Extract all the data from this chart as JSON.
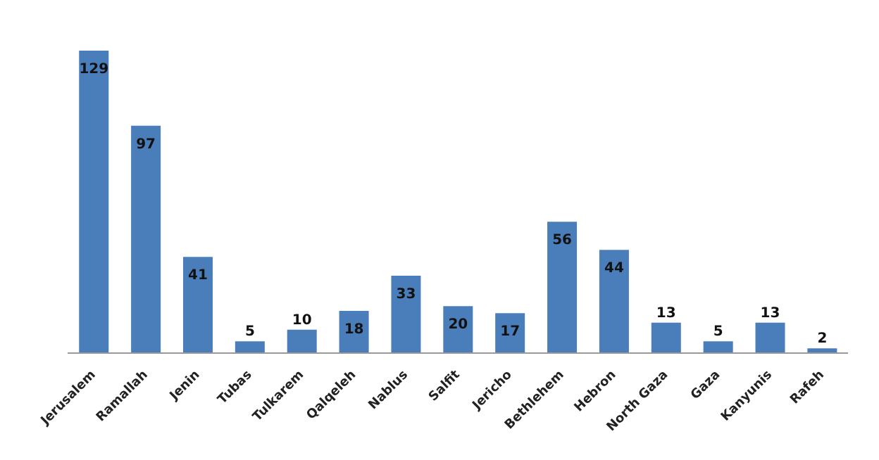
{
  "chart_data": {
    "type": "bar",
    "categories": [
      "Jerusalem",
      "Ramallah",
      "Jenin",
      "Tubas",
      "Tulkarem",
      "Qalqeleh",
      "Nablus",
      "Salfit",
      "Jericho",
      "Bethlehem",
      "Hebron",
      "North Gaza",
      "Gaza",
      "Kanyunis",
      "Rafeh"
    ],
    "values": [
      129,
      97,
      41,
      5,
      10,
      18,
      33,
      20,
      17,
      56,
      44,
      13,
      5,
      13,
      2
    ],
    "color": "#4a7ebb",
    "data_labels": true
  }
}
